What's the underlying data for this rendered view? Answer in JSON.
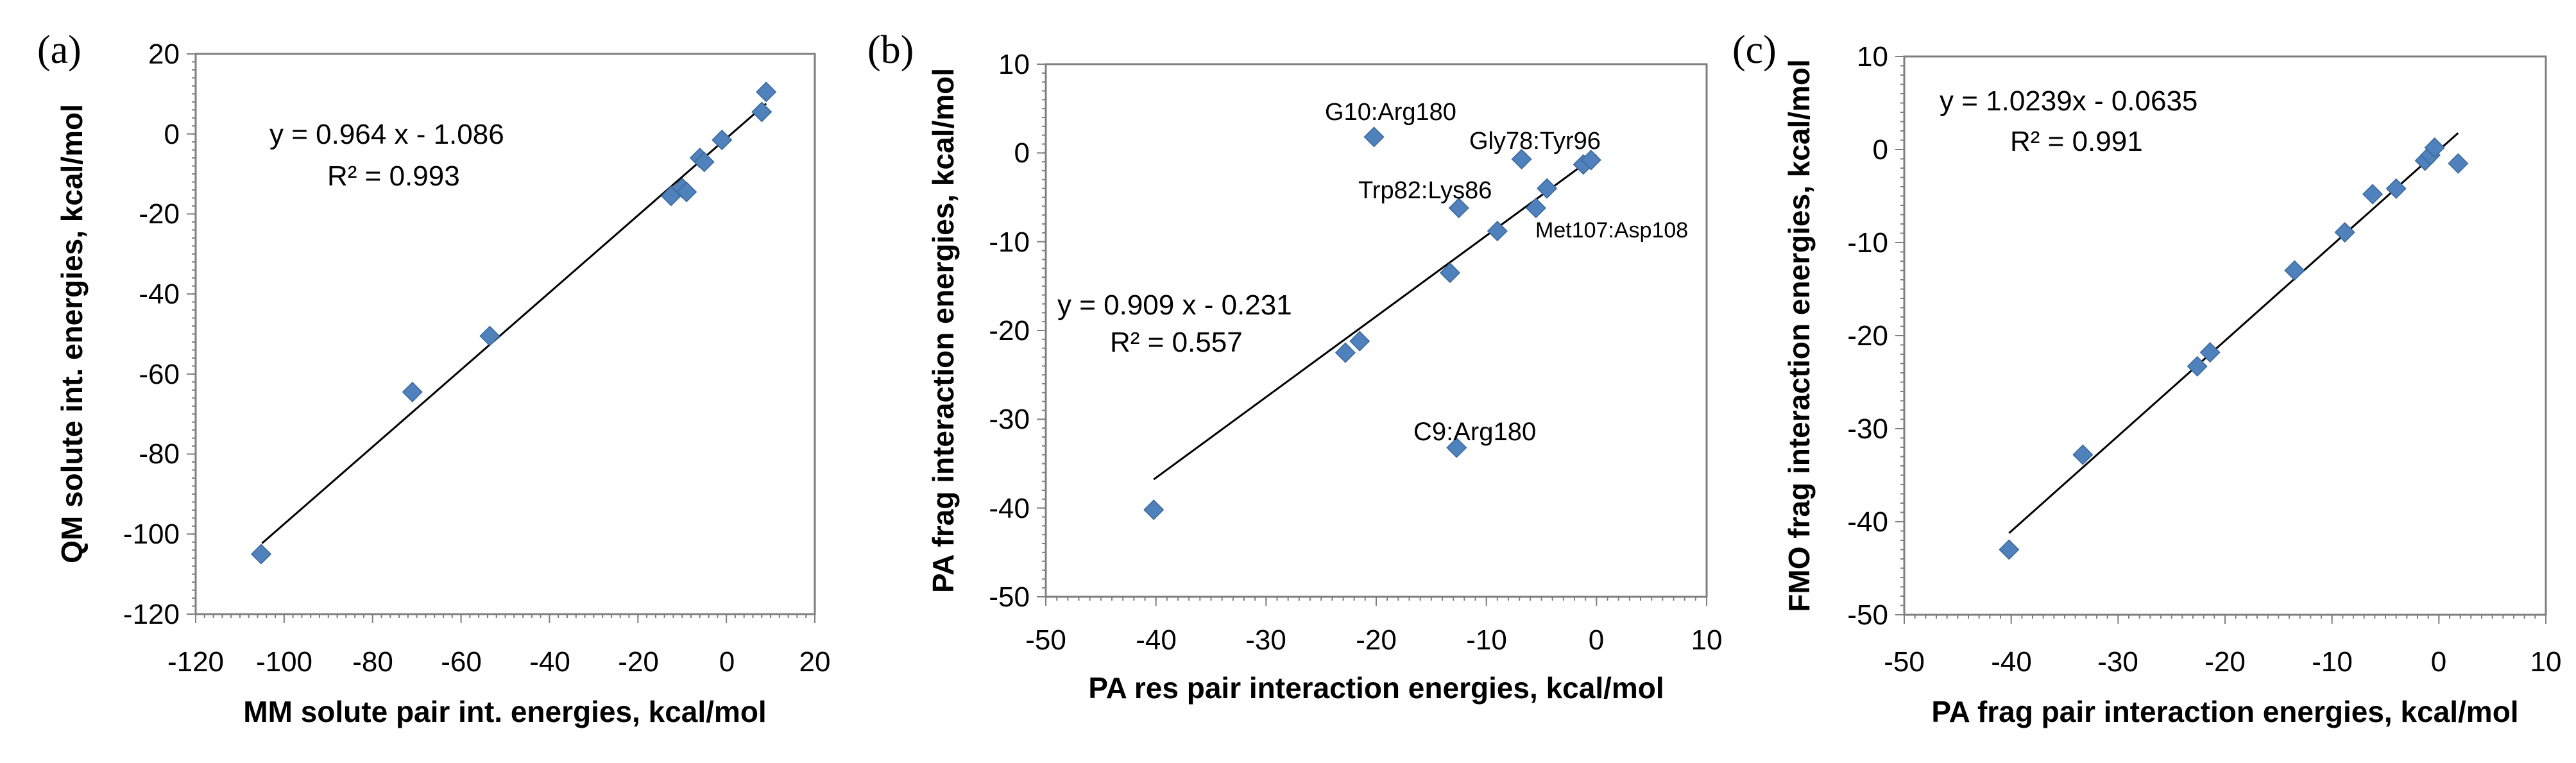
{
  "chart_data": [
    {
      "panel_label": "(a)",
      "type": "scatter",
      "xlabel": "MM solute pair int. energies, kcal/mol",
      "ylabel": "QM solute int. energies, kcal/mol",
      "xlim": [
        -120,
        20
      ],
      "ylim": [
        -120,
        20
      ],
      "xticks": [
        -120,
        -100,
        -80,
        -60,
        -40,
        -20,
        0,
        20
      ],
      "yticks": [
        -120,
        -100,
        -80,
        -60,
        -40,
        -20,
        0,
        20
      ],
      "xtick_labels": [
        "-120",
        "-100",
        "-80",
        "-60",
        "-40",
        "-20",
        "0",
        "20"
      ],
      "ytick_labels": [
        "-120",
        "-100",
        "-80",
        "-60",
        "-40",
        "-20",
        "0",
        "20"
      ],
      "points": [
        {
          "x": -105.2,
          "y": -105.0
        },
        {
          "x": -71.0,
          "y": -64.5
        },
        {
          "x": -53.5,
          "y": -50.5
        },
        {
          "x": -12.5,
          "y": -15.5
        },
        {
          "x": -10.0,
          "y": -13.5
        },
        {
          "x": -9.0,
          "y": -14.5
        },
        {
          "x": -6.0,
          "y": -6.0
        },
        {
          "x": -5.0,
          "y": -7.0
        },
        {
          "x": -1.0,
          "y": -1.5
        },
        {
          "x": 8.0,
          "y": 5.5
        },
        {
          "x": 9.0,
          "y": 10.5
        }
      ],
      "trendline": {
        "slope": 0.964,
        "intercept": -1.086,
        "x_range": [
          -105,
          9
        ]
      },
      "equation_text": "y = 0.964 x - 1.086",
      "r2_text": "R² = 0.993",
      "annotations": []
    },
    {
      "panel_label": "(b)",
      "type": "scatter",
      "xlabel": "PA res pair interaction energies, kcal/mol",
      "ylabel": "PA frag interaction energies, kcal/mol",
      "xlim": [
        -50,
        10
      ],
      "ylim": [
        -50,
        10
      ],
      "xticks": [
        -50,
        -40,
        -30,
        -20,
        -10,
        0,
        10
      ],
      "yticks": [
        -50,
        -40,
        -30,
        -20,
        -10,
        0,
        10
      ],
      "xtick_labels": [
        "-50",
        "-40",
        "-30",
        "-20",
        "-10",
        "0",
        "10"
      ],
      "ytick_labels": [
        "-50",
        "-40",
        "-30",
        "-20",
        "-10",
        "0",
        "10"
      ],
      "points": [
        {
          "x": -40.2,
          "y": -40.2
        },
        {
          "x": -22.8,
          "y": -22.5
        },
        {
          "x": -21.5,
          "y": -21.2
        },
        {
          "x": -20.2,
          "y": 1.8
        },
        {
          "x": -13.3,
          "y": -13.5
        },
        {
          "x": -12.5,
          "y": -6.2
        },
        {
          "x": -12.7,
          "y": -33.2
        },
        {
          "x": -9.0,
          "y": -8.8
        },
        {
          "x": -6.8,
          "y": -0.7
        },
        {
          "x": -5.5,
          "y": -6.2
        },
        {
          "x": -4.5,
          "y": -4.0
        },
        {
          "x": -1.2,
          "y": -1.3
        },
        {
          "x": -0.5,
          "y": -0.8
        }
      ],
      "trendline": {
        "slope": 0.909,
        "intercept": -0.231,
        "x_range": [
          -40.2,
          0
        ]
      },
      "equation_text": "y = 0.909 x - 0.231",
      "r2_text": "R² = 0.557",
      "annotations": [
        "G10:Arg180",
        "Gly78:Tyr96",
        "Trp82:Lys86",
        "Met107:Asp108",
        "C9:Arg180"
      ]
    },
    {
      "panel_label": "(c)",
      "type": "scatter",
      "xlabel": "PA frag pair interaction energies, kcal/mol",
      "ylabel": "FMO frag interaction energies, kcal/mol",
      "xlim": [
        -50,
        10
      ],
      "ylim": [
        -50,
        10
      ],
      "xticks": [
        -50,
        -40,
        -30,
        -20,
        -10,
        0,
        10
      ],
      "yticks": [
        -50,
        -40,
        -30,
        -20,
        -10,
        0,
        10
      ],
      "xtick_labels": [
        "-50",
        "-40",
        "-30",
        "-20",
        "-10",
        "0",
        "10"
      ],
      "ytick_labels": [
        "-50",
        "-40",
        "-30",
        "-20",
        "-10",
        "0",
        "10"
      ],
      "points": [
        {
          "x": -40.2,
          "y": -43.0
        },
        {
          "x": -33.3,
          "y": -32.8
        },
        {
          "x": -22.6,
          "y": -23.3
        },
        {
          "x": -21.4,
          "y": -21.8
        },
        {
          "x": -13.5,
          "y": -13.0
        },
        {
          "x": -8.8,
          "y": -8.9
        },
        {
          "x": -6.2,
          "y": -4.8
        },
        {
          "x": -4.0,
          "y": -4.2
        },
        {
          "x": -1.3,
          "y": -1.2
        },
        {
          "x": -0.8,
          "y": -0.6
        },
        {
          "x": -0.4,
          "y": 0.2
        },
        {
          "x": 1.8,
          "y": -1.5
        }
      ],
      "trendline": {
        "slope": 1.0239,
        "intercept": -0.0635,
        "x_range": [
          -40.2,
          1.8
        ]
      },
      "equation_text": "y = 1.0239x - 0.0635",
      "r2_text": "R² = 0.991",
      "annotations": []
    }
  ],
  "colors": {
    "marker": "#4F81BD",
    "marker_edge": "#3A6799",
    "trendline": "#000000",
    "axis": "#7F7F7F"
  }
}
